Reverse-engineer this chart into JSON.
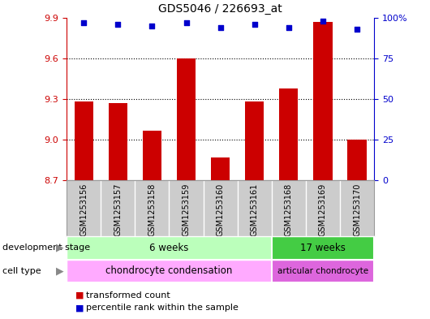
{
  "title": "GDS5046 / 226693_at",
  "samples": [
    "GSM1253156",
    "GSM1253157",
    "GSM1253158",
    "GSM1253159",
    "GSM1253160",
    "GSM1253161",
    "GSM1253168",
    "GSM1253169",
    "GSM1253170"
  ],
  "bar_values": [
    9.28,
    9.27,
    9.07,
    9.6,
    8.87,
    9.28,
    9.38,
    9.87,
    9.0
  ],
  "percentile_values": [
    97,
    96,
    95,
    97,
    94,
    96,
    94,
    98,
    93
  ],
  "bar_color": "#cc0000",
  "dot_color": "#0000cc",
  "ylim_left": [
    8.7,
    9.9
  ],
  "ylim_right": [
    0,
    100
  ],
  "yticks_left": [
    8.7,
    9.0,
    9.3,
    9.6,
    9.9
  ],
  "yticks_right": [
    0,
    25,
    50,
    75,
    100
  ],
  "ytick_labels_right": [
    "0",
    "25",
    "50",
    "75",
    "100%"
  ],
  "grid_values": [
    9.0,
    9.3,
    9.6
  ],
  "bar_width": 0.55,
  "development_stage_label": "development stage",
  "cell_type_label": "cell type",
  "group1_label": "6 weeks",
  "group2_label": "17 weeks",
  "cell1_label": "chondrocyte condensation",
  "cell2_label": "articular chondrocyte",
  "group1_color": "#bbffbb",
  "group2_color": "#44cc44",
  "cell1_color": "#ffaaff",
  "cell2_color": "#dd66dd",
  "legend_bar_label": "transformed count",
  "legend_dot_label": "percentile rank within the sample",
  "group1_count": 6,
  "group2_count": 3,
  "bg_color": "#ffffff",
  "plot_bg_color": "#ffffff",
  "left_axis_color": "#cc0000",
  "right_axis_color": "#0000cc",
  "label_area_color": "#cccccc",
  "label_area_border": "#999999"
}
